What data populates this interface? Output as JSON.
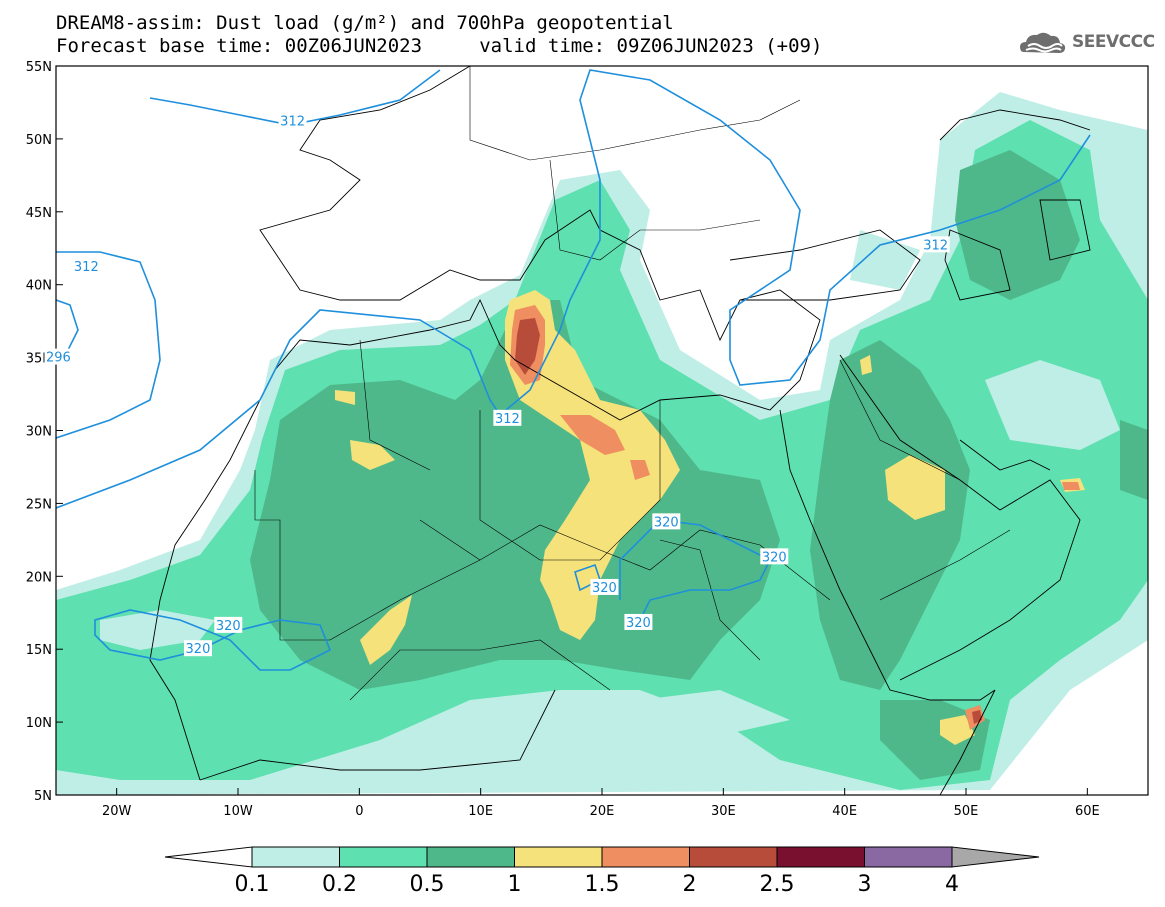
{
  "title": {
    "line1": "DREAM8-assim: Dust load (g/m²) and 700hPa geopotential",
    "line2": "Forecast base time: 00Z06JUN2023     valid time: 09Z06JUN2023 (+09)"
  },
  "logo": {
    "icon": "cloud-logo-icon",
    "text": "SEEVCCC"
  },
  "axes": {
    "lon_range": [
      -25,
      65
    ],
    "lat_range": [
      5,
      55
    ],
    "lat_ticks": [
      {
        "value": 55,
        "label": "55N"
      },
      {
        "value": 50,
        "label": "50N"
      },
      {
        "value": 45,
        "label": "45N"
      },
      {
        "value": 40,
        "label": "40N"
      },
      {
        "value": 35,
        "label": "35N"
      },
      {
        "value": 30,
        "label": "30N"
      },
      {
        "value": 25,
        "label": "25N"
      },
      {
        "value": 20,
        "label": "20N"
      },
      {
        "value": 15,
        "label": "15N"
      },
      {
        "value": 10,
        "label": "10N"
      },
      {
        "value": 5,
        "label": "5N"
      }
    ],
    "lon_ticks": [
      {
        "value": -20,
        "label": "20W"
      },
      {
        "value": -10,
        "label": "10W"
      },
      {
        "value": 0,
        "label": "0"
      },
      {
        "value": 10,
        "label": "10E"
      },
      {
        "value": 20,
        "label": "20E"
      },
      {
        "value": 30,
        "label": "30E"
      },
      {
        "value": 40,
        "label": "40E"
      },
      {
        "value": 50,
        "label": "50E"
      },
      {
        "value": 60,
        "label": "60E"
      }
    ]
  },
  "contour_labels": [
    {
      "text": "312",
      "lon": -22.5,
      "lat": 41.2
    },
    {
      "text": "296",
      "lon": -24.8,
      "lat": 35.0
    },
    {
      "text": "312",
      "lon": -5.5,
      "lat": 51.2
    },
    {
      "text": "312",
      "lon": 12.2,
      "lat": 30.8
    },
    {
      "text": "312",
      "lon": 47.5,
      "lat": 42.7
    },
    {
      "text": "320",
      "lon": 25.3,
      "lat": 23.7
    },
    {
      "text": "320",
      "lon": 34.2,
      "lat": 21.3
    },
    {
      "text": "320",
      "lon": 20.2,
      "lat": 19.2
    },
    {
      "text": "320",
      "lon": 23.0,
      "lat": 16.8
    },
    {
      "text": "320",
      "lon": -10.8,
      "lat": 16.6
    },
    {
      "text": "320",
      "lon": -13.3,
      "lat": 15.0
    }
  ],
  "colorbar": {
    "levels": [
      {
        "value": "0.1",
        "color": "#bfeee6"
      },
      {
        "value": "0.2",
        "color": "#5ee0b0"
      },
      {
        "value": "0.5",
        "color": "#4fb88a"
      },
      {
        "value": "1",
        "color": "#f5e27a"
      },
      {
        "value": "1.5",
        "color": "#ef8e60"
      },
      {
        "value": "2",
        "color": "#b84c3a"
      },
      {
        "value": "2.5",
        "color": "#7a1030"
      },
      {
        "value": "3",
        "color": "#8a68a2"
      },
      {
        "value": "4",
        "color": "#a8a8a8"
      }
    ],
    "under_color": "#ffffff"
  },
  "colors": {
    "geopotential_contour": "#1e8fdc",
    "borders": "#000000"
  }
}
